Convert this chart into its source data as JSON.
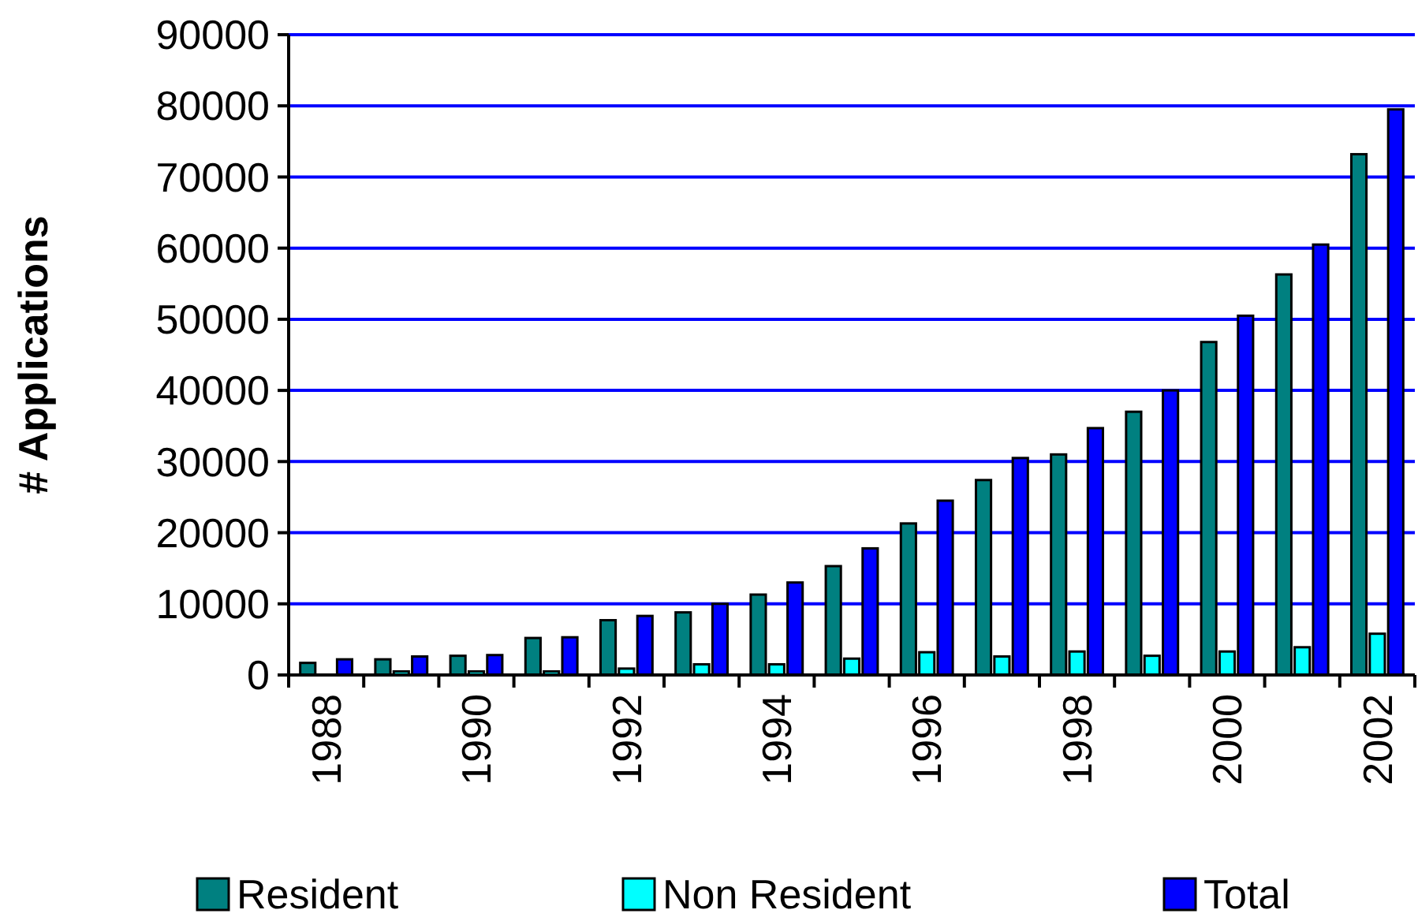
{
  "chart_data": {
    "type": "bar",
    "ylabel": "# Applications",
    "categories": [
      "1988",
      null,
      "1990",
      null,
      "1992",
      null,
      "1994",
      null,
      "1996",
      null,
      "1998",
      null,
      "2000",
      null,
      "2002"
    ],
    "series": [
      {
        "name": "Resident",
        "color": "#008080",
        "values": [
          1700,
          2200,
          2700,
          5200,
          7700,
          8800,
          11300,
          15300,
          21300,
          27400,
          31000,
          37000,
          46800,
          56300,
          73200
        ]
      },
      {
        "name": "Non Resident",
        "color": "#00ffff",
        "values": [
          null,
          500,
          500,
          500,
          900,
          1500,
          1500,
          2300,
          3200,
          2600,
          3300,
          2700,
          3300,
          3900,
          5800
        ]
      },
      {
        "name": "Total",
        "color": "#0000ff",
        "values": [
          2200,
          2600,
          2800,
          5300,
          8300,
          10000,
          13000,
          17800,
          24500,
          30500,
          34700,
          40000,
          50500,
          60500,
          79500
        ]
      }
    ],
    "ylim": [
      0,
      90000
    ],
    "yticks": [
      0,
      10000,
      20000,
      30000,
      40000,
      50000,
      60000,
      70000,
      80000,
      90000
    ],
    "grid": "y",
    "legend": "bottom"
  }
}
